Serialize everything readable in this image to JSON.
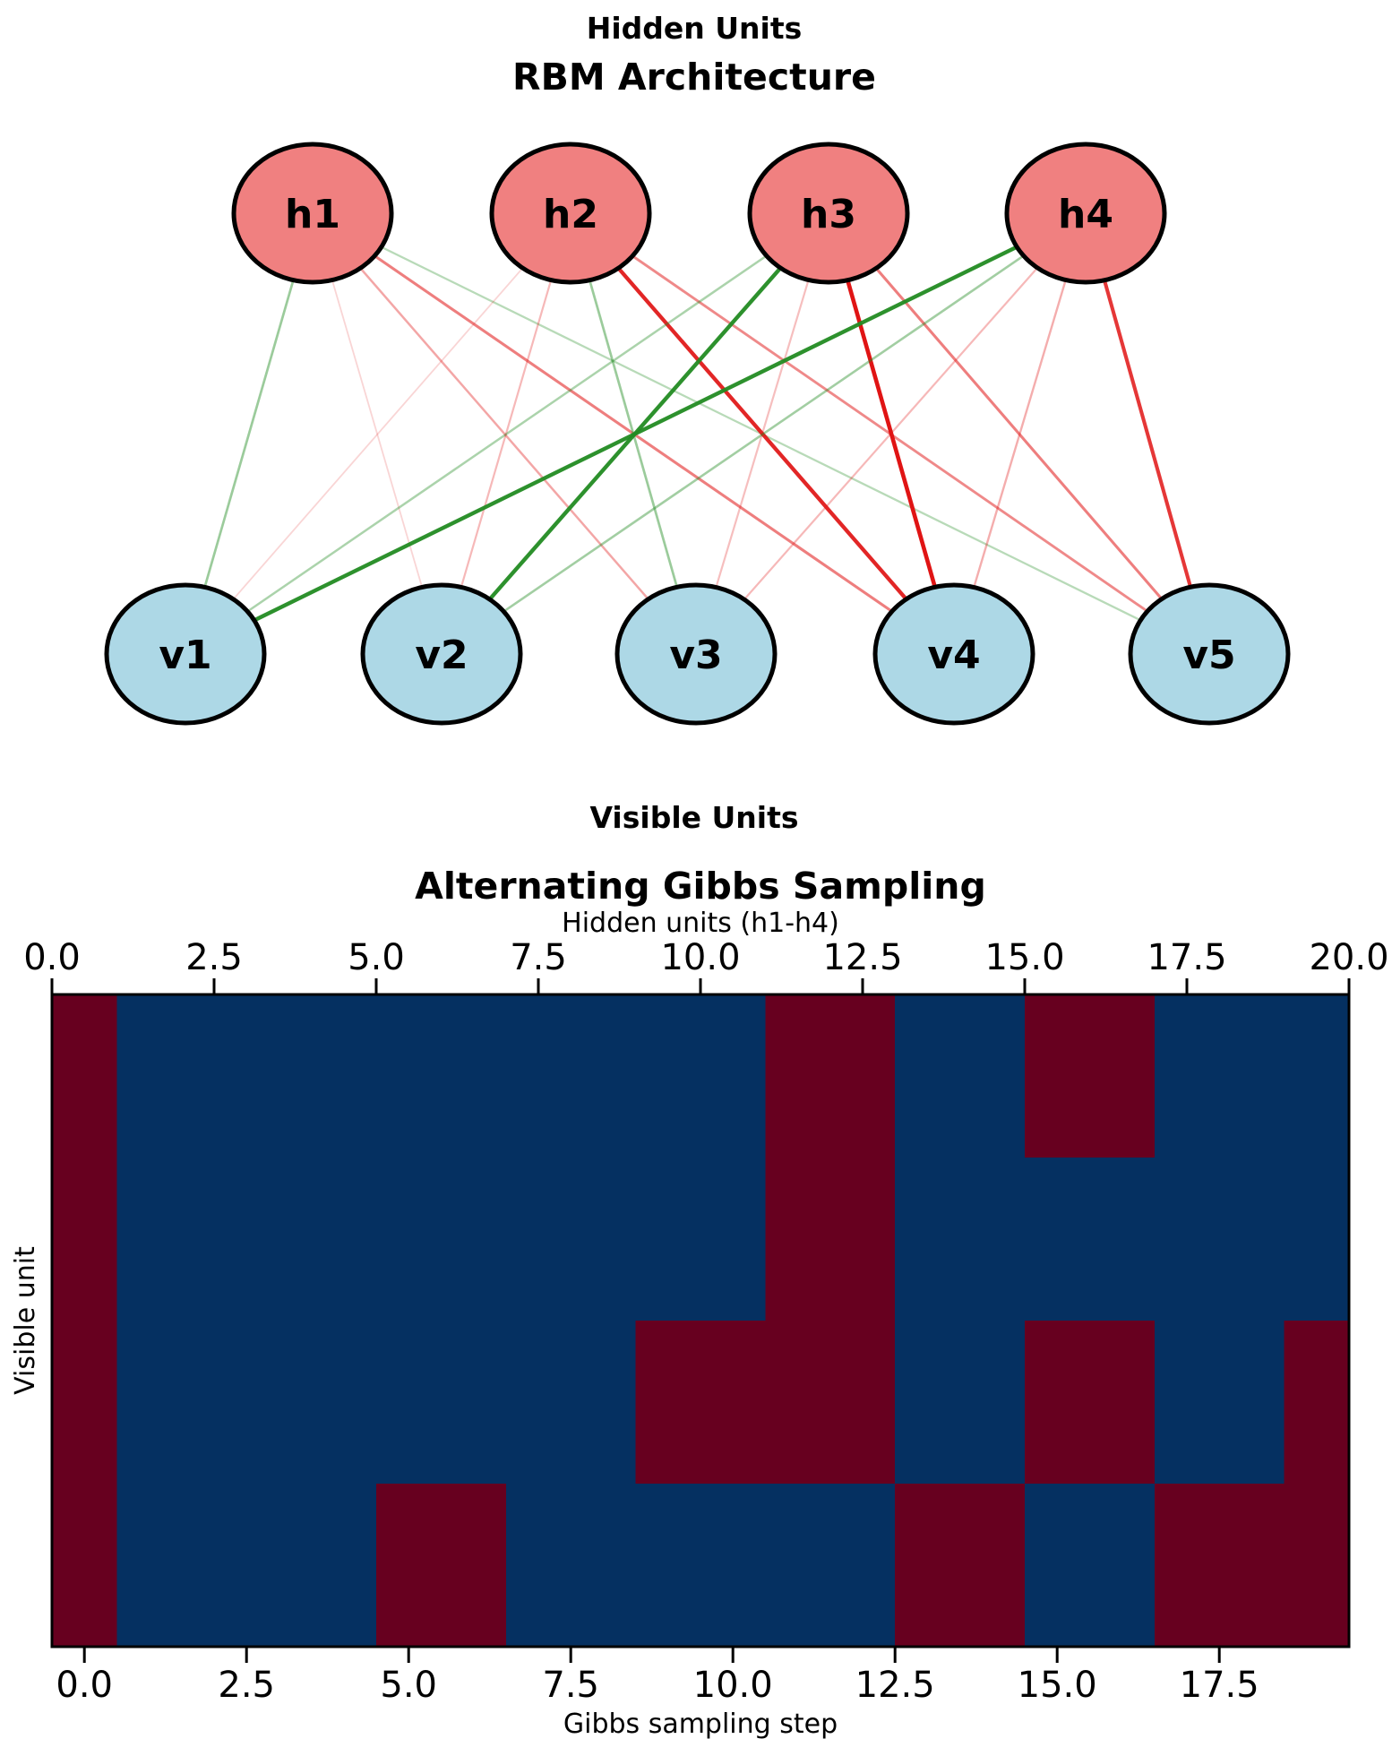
{
  "chart_data": [
    {
      "type": "diagram",
      "name": "rbm-architecture",
      "title": "RBM Architecture",
      "hidden_row_label": "Hidden Units",
      "visible_row_label": "Visible Units",
      "hidden_units": [
        "h1",
        "h2",
        "h3",
        "h4"
      ],
      "visible_units": [
        "v1",
        "v2",
        "v3",
        "v4",
        "v5"
      ],
      "node_fill_hidden": "#F08080",
      "node_fill_visible": "#ADD8E6",
      "node_border_color": "#000000",
      "edge_color_positive": "#228B22",
      "edge_color_negative": "#E01414",
      "edge_note": "rows = hidden units h1-h4, cols = visible units v1-v5; sign gives color (green positive, red negative), magnitude gives line opacity and width",
      "weights_hidden_by_visible": [
        [
          0.45,
          -0.18,
          -0.38,
          -0.55,
          0.32
        ],
        [
          -0.18,
          -0.3,
          0.45,
          -0.92,
          -0.5
        ],
        [
          0.38,
          0.95,
          -0.28,
          -1.0,
          -0.55
        ],
        [
          0.95,
          0.42,
          -0.3,
          -0.35,
          -0.85
        ]
      ]
    },
    {
      "type": "heatmap",
      "name": "alternating-gibbs-sampling",
      "title": "Alternating Gibbs Sampling",
      "top_axis_label": "Hidden units (h1-h4)",
      "xlabel": "Gibbs sampling step",
      "ylabel": "Visible unit",
      "rows": 4,
      "cols": 20,
      "top_axis_range": [
        0,
        20
      ],
      "x_range": [
        -0.5,
        19.5
      ],
      "top_ticks": [
        "0.0",
        "2.5",
        "5.0",
        "7.5",
        "10.0",
        "12.5",
        "15.0",
        "17.5",
        "20.0"
      ],
      "bottom_ticks": [
        "0.0",
        "2.5",
        "5.0",
        "7.5",
        "10.0",
        "12.5",
        "15.0",
        "17.5"
      ],
      "value_colors": {
        "0": "#67001F",
        "1": "#053061"
      },
      "grid_lines": false,
      "legend": "none",
      "cell_values": [
        [
          0,
          1,
          1,
          1,
          1,
          1,
          1,
          1,
          1,
          1,
          1,
          0,
          0,
          1,
          1,
          0,
          0,
          1,
          1,
          1
        ],
        [
          0,
          1,
          1,
          1,
          1,
          1,
          1,
          1,
          1,
          1,
          1,
          0,
          0,
          1,
          1,
          1,
          1,
          1,
          1,
          1
        ],
        [
          0,
          1,
          1,
          1,
          1,
          1,
          1,
          1,
          1,
          0,
          0,
          0,
          0,
          1,
          1,
          0,
          0,
          1,
          1,
          0
        ],
        [
          0,
          1,
          1,
          1,
          1,
          0,
          0,
          1,
          1,
          1,
          1,
          1,
          1,
          0,
          0,
          1,
          1,
          0,
          0,
          0
        ]
      ]
    }
  ]
}
